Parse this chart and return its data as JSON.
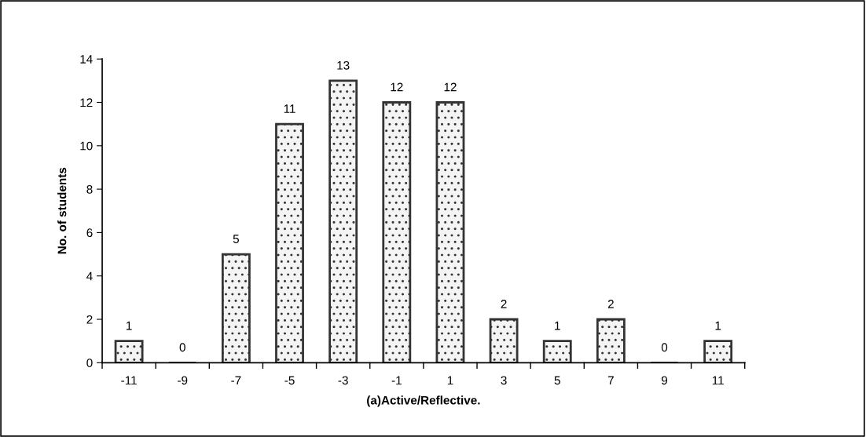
{
  "chart_data": {
    "type": "bar",
    "xlabel": "(a)Active/Reflective.",
    "ylabel": "No. of students",
    "categories": [
      "-11",
      "-9",
      "-7",
      "-5",
      "-3",
      "-1",
      "1",
      "3",
      "5",
      "7",
      "9",
      "11"
    ],
    "values": [
      1,
      0,
      5,
      11,
      13,
      12,
      12,
      2,
      1,
      2,
      0,
      1
    ],
    "color": "#333333",
    "ylim": [
      0,
      14
    ],
    "yticks": [
      0,
      2,
      4,
      6,
      8,
      10,
      12,
      14
    ],
    "data_labels": true,
    "grid": false,
    "legend": false
  }
}
